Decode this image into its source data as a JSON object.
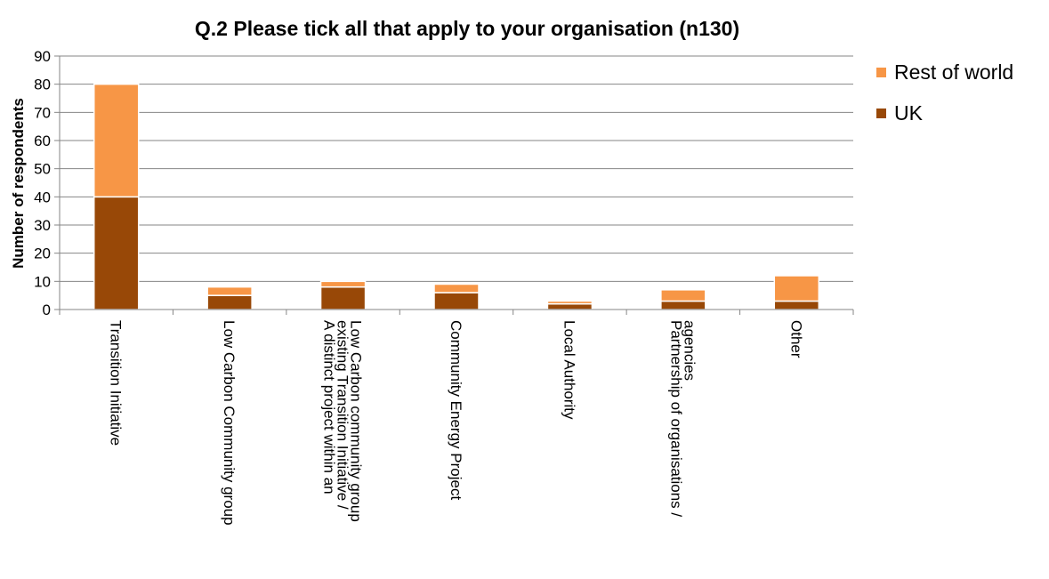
{
  "chart_data": {
    "type": "bar",
    "stacked": true,
    "title": "Q.2 Please tick all that apply to your organisation (n130)",
    "ylabel": "Number of respondents",
    "xlabel": "",
    "ylim": [
      0,
      90
    ],
    "yticks": [
      "0",
      "10",
      "20",
      "30",
      "40",
      "50",
      "60",
      "70",
      "80",
      "90"
    ],
    "grid": true,
    "legend_position": "right",
    "categories": [
      "Transition Initiative",
      "Low Carbon Community group",
      "A distinct project within an existing Transition Initiative / Low Carbon community group",
      "Community Energy Project",
      "Local Authority",
      "Partnership of organisations / agencies",
      "Other"
    ],
    "category_lines": [
      [
        "Transition Initiative"
      ],
      [
        "Low Carbon Community group"
      ],
      [
        "A distinct project within an",
        "existing Transition Initiative /",
        "Low Carbon community group"
      ],
      [
        "Community Energy Project"
      ],
      [
        "Local Authority"
      ],
      [
        "Partnership of organisations /",
        "agencies"
      ],
      [
        "Other"
      ]
    ],
    "series": [
      {
        "name": "UK",
        "color": "#984807",
        "values": [
          40,
          5,
          8,
          6,
          2,
          3,
          3
        ]
      },
      {
        "name": "Rest of world",
        "color": "#F79646",
        "values": [
          40,
          3,
          2,
          3,
          1,
          4,
          9
        ]
      }
    ],
    "legend_order": [
      "Rest of world",
      "UK"
    ]
  }
}
